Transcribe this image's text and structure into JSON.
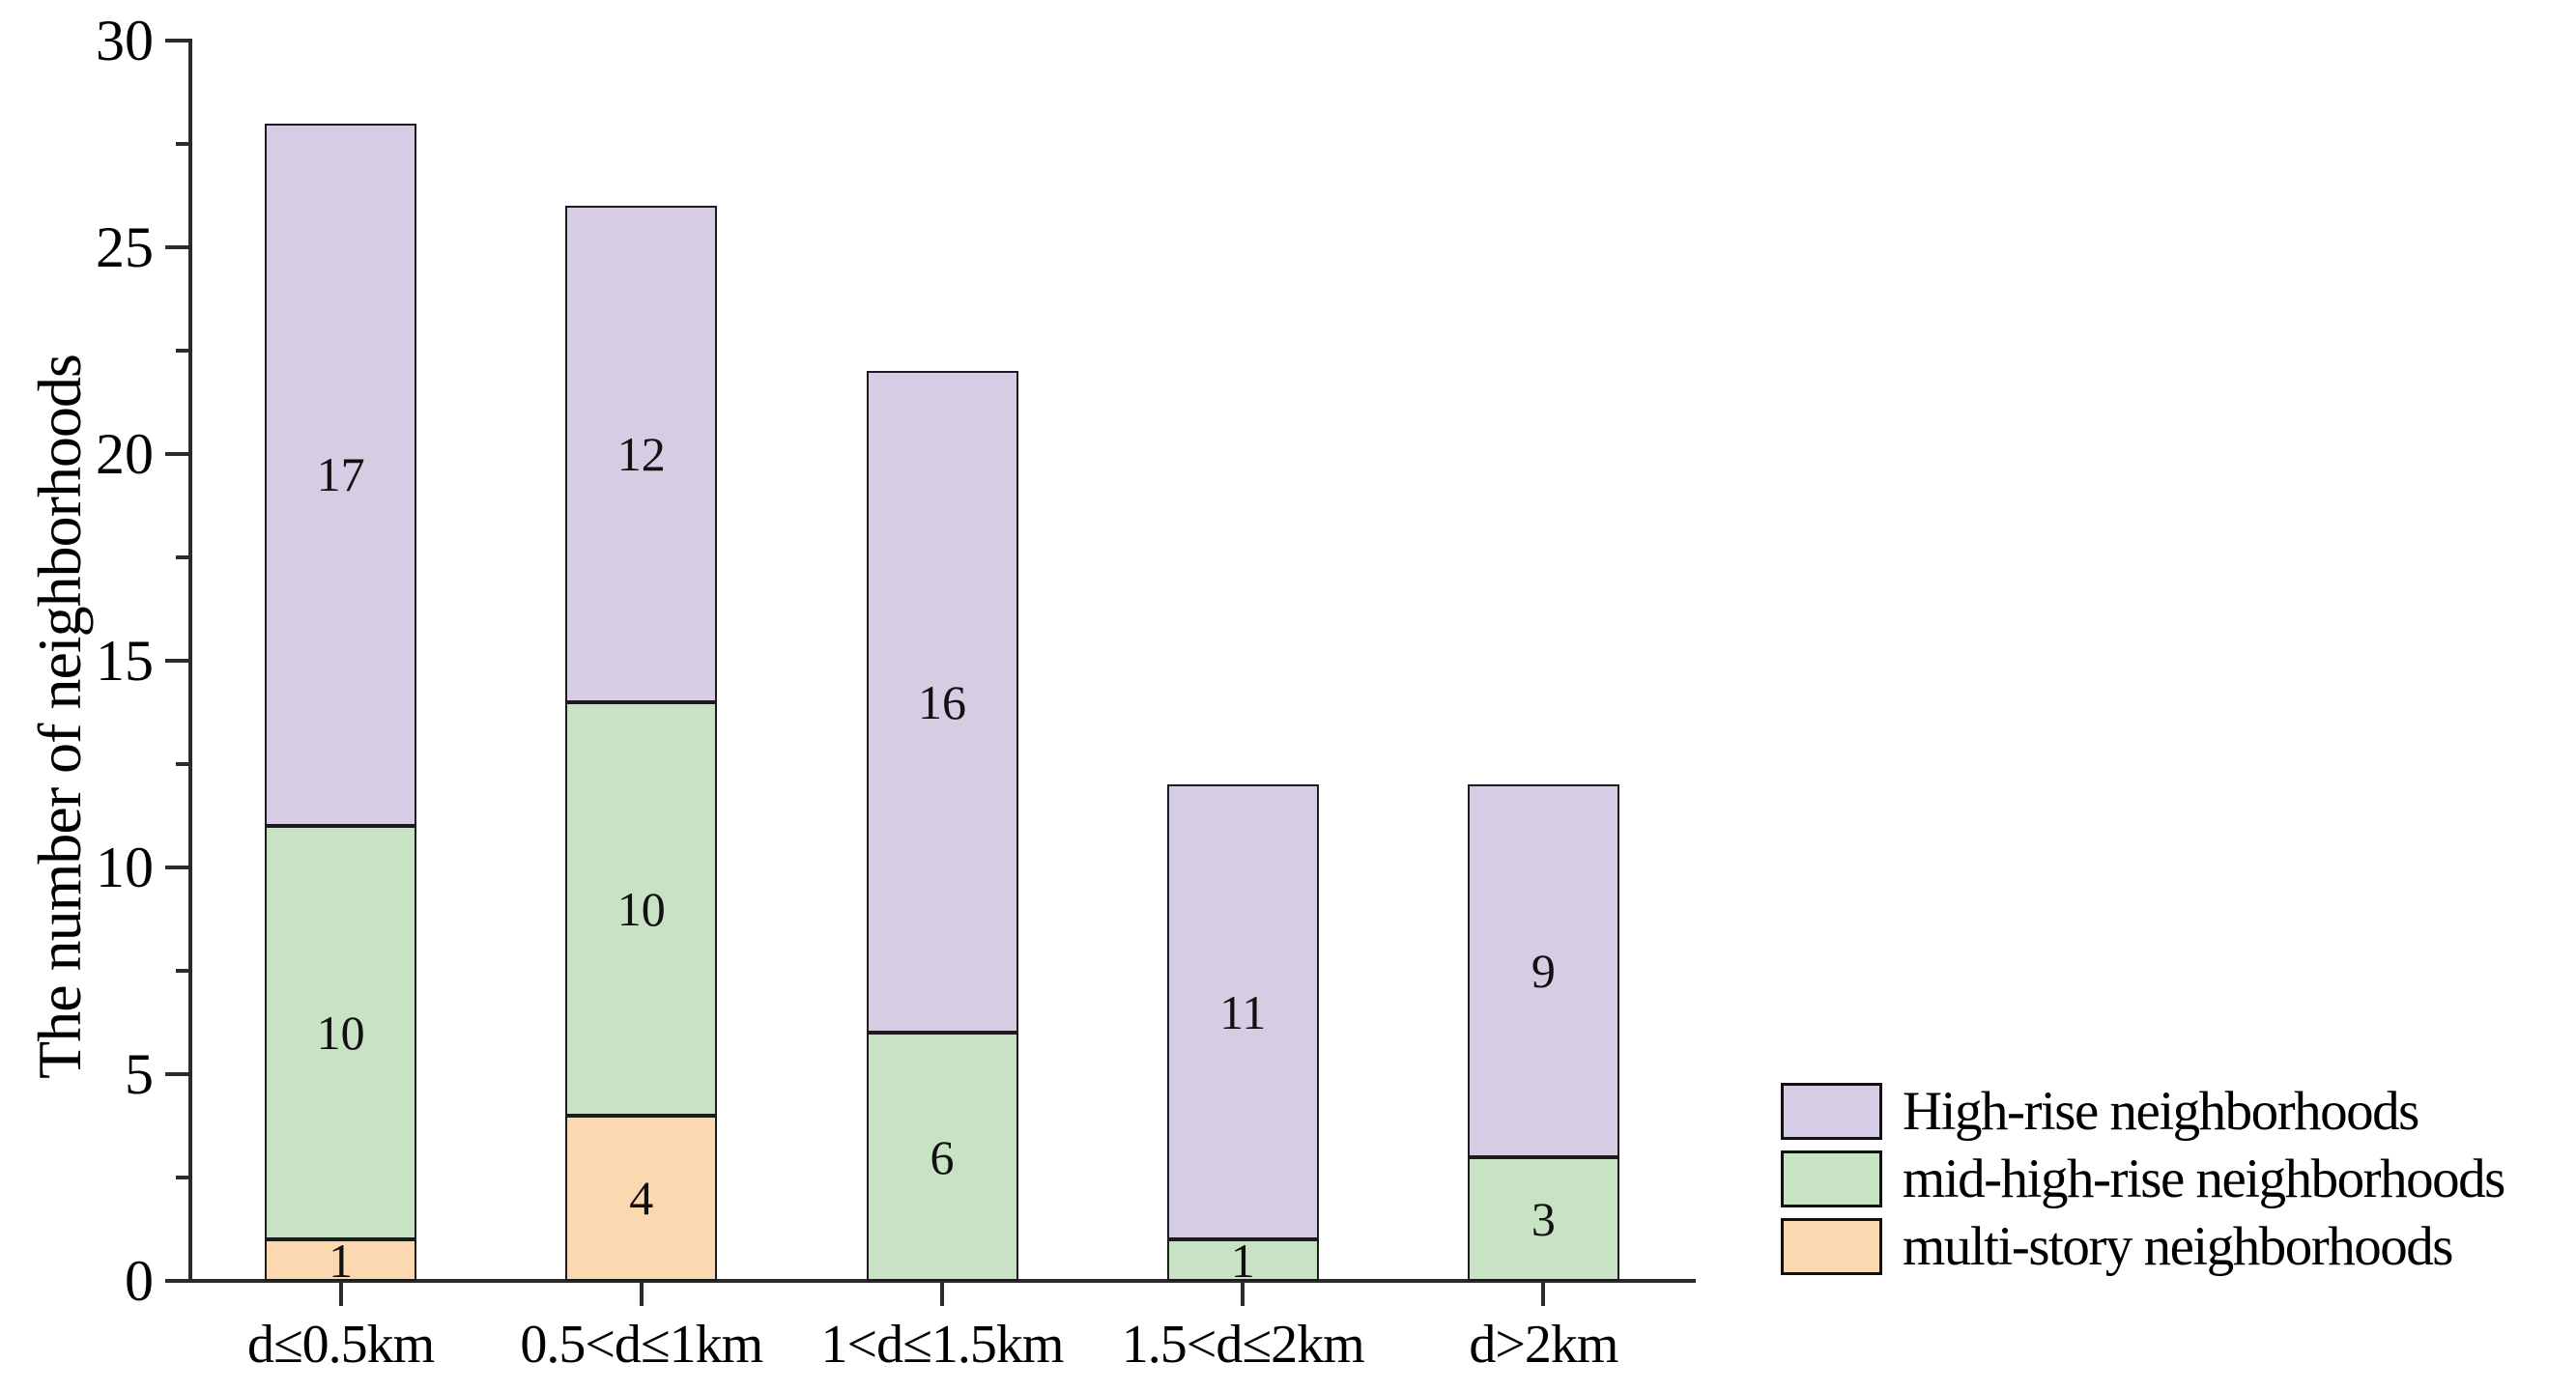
{
  "chart_data": {
    "type": "bar",
    "stacked": true,
    "title": "",
    "xlabel": "",
    "ylabel": "The number of neighborhoods",
    "ylim": [
      0,
      30
    ],
    "yticks_major": [
      0,
      5,
      10,
      15,
      20,
      25,
      30
    ],
    "yticks_minor": [
      2.5,
      7.5,
      12.5,
      17.5,
      22.5,
      27.5
    ],
    "grid": false,
    "bar_value_labels_shown": true,
    "categories": [
      "d≤0.5km",
      "0.5<d≤1km",
      "1<d≤1.5km",
      "1.5<d≤2km",
      "d>2km"
    ],
    "series": [
      {
        "name": "multi-story neighborhoods",
        "color": "#FBD8AF",
        "values": [
          1,
          4,
          0,
          0,
          0
        ]
      },
      {
        "name": "mid-high-rise neighborhoods",
        "color": "#C8E3C3",
        "values": [
          10,
          10,
          6,
          1,
          3
        ]
      },
      {
        "name": "High-rise neighborhoods",
        "color": "#D6CDE4",
        "values": [
          17,
          12,
          16,
          11,
          9
        ]
      }
    ],
    "totals": [
      28,
      26,
      22,
      12,
      12
    ],
    "legend": {
      "position": "lower right",
      "entries": [
        "High-rise neighborhoods",
        "mid-high-rise neighborhoods",
        "multi-story neighborhoods"
      ]
    }
  },
  "colors": {
    "background": "#ffffff",
    "axis": "#2b2b2b",
    "bar_border": "#1c1c1c",
    "text": "#000000",
    "high_rise": "#D6CDE4",
    "mid_high_rise": "#C8E3C3",
    "multi_story": "#FBD8AF"
  }
}
